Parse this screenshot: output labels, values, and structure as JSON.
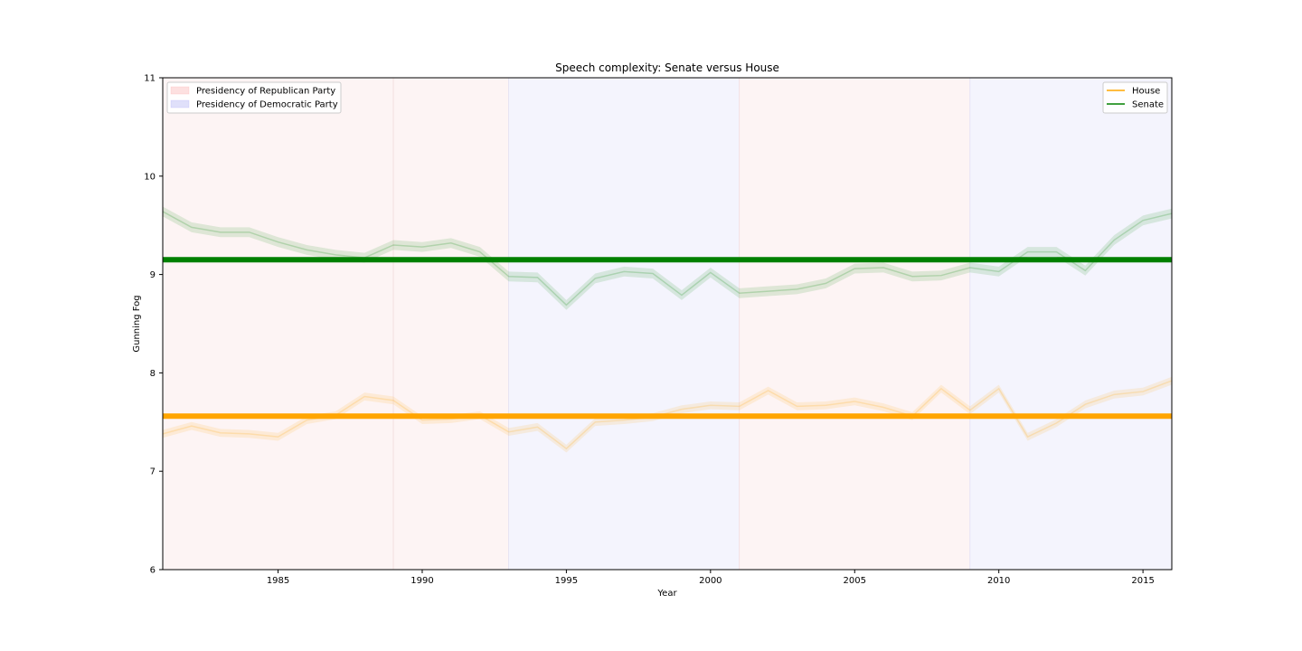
{
  "chart_data": {
    "type": "line",
    "title": "Speech complexity: Senate versus House",
    "xlabel": "Year",
    "ylabel": "Gunning Fog",
    "xlim": [
      1981,
      2016
    ],
    "ylim": [
      6,
      11
    ],
    "xticks": [
      1985,
      1990,
      1995,
      2000,
      2005,
      2010,
      2015
    ],
    "yticks": [
      6,
      7,
      8,
      9,
      10,
      11
    ],
    "grid": false,
    "legend_series_position": "top-right",
    "legend_periods_position": "top-left",
    "periods": [
      {
        "start": 1981,
        "end": 1989,
        "party": "republican"
      },
      {
        "start": 1989,
        "end": 1993,
        "party": "republican"
      },
      {
        "start": 1993,
        "end": 2001,
        "party": "democratic"
      },
      {
        "start": 2001,
        "end": 2009,
        "party": "republican"
      },
      {
        "start": 2009,
        "end": 2016,
        "party": "democratic"
      }
    ],
    "period_legend": [
      {
        "label": "Presidency of Republican Party",
        "color": "#ff9999"
      },
      {
        "label": "Presidency of Democratic Party",
        "color": "#9999ff"
      }
    ],
    "period_colors": {
      "republican": "#fdf4f4",
      "democratic": "#f4f4fd",
      "republican_legend": "#fde0e0",
      "democratic_legend": "#e0e0fa"
    },
    "x": [
      1981,
      1982,
      1983,
      1984,
      1985,
      1986,
      1987,
      1988,
      1989,
      1990,
      1991,
      1992,
      1993,
      1994,
      1995,
      1996,
      1997,
      1998,
      1999,
      2000,
      2001,
      2002,
      2003,
      2004,
      2005,
      2006,
      2007,
      2008,
      2009,
      2010,
      2011,
      2012,
      2013,
      2014,
      2015,
      2016
    ],
    "series": [
      {
        "name": "House",
        "color": "#ffa500",
        "mean_line": 7.56,
        "values": [
          7.38,
          7.46,
          7.39,
          7.38,
          7.35,
          7.52,
          7.57,
          7.76,
          7.72,
          7.52,
          7.53,
          7.57,
          7.4,
          7.45,
          7.23,
          7.5,
          7.52,
          7.55,
          7.63,
          7.67,
          7.66,
          7.82,
          7.66,
          7.67,
          7.71,
          7.65,
          7.56,
          7.84,
          7.62,
          7.84,
          7.35,
          7.49,
          7.68,
          7.78,
          7.81,
          7.92
        ],
        "band": 0.04
      },
      {
        "name": "Senate",
        "color": "#008000",
        "mean_line": 9.15,
        "values": [
          9.64,
          9.48,
          9.43,
          9.43,
          9.33,
          9.25,
          9.2,
          9.17,
          9.3,
          9.28,
          9.32,
          9.23,
          8.98,
          8.97,
          8.69,
          8.96,
          9.03,
          9.01,
          8.79,
          9.02,
          8.81,
          8.83,
          8.85,
          8.91,
          9.06,
          9.07,
          8.98,
          8.99,
          9.07,
          9.03,
          9.23,
          9.23,
          9.04,
          9.35,
          9.55,
          9.62
        ],
        "band": 0.05
      }
    ]
  }
}
